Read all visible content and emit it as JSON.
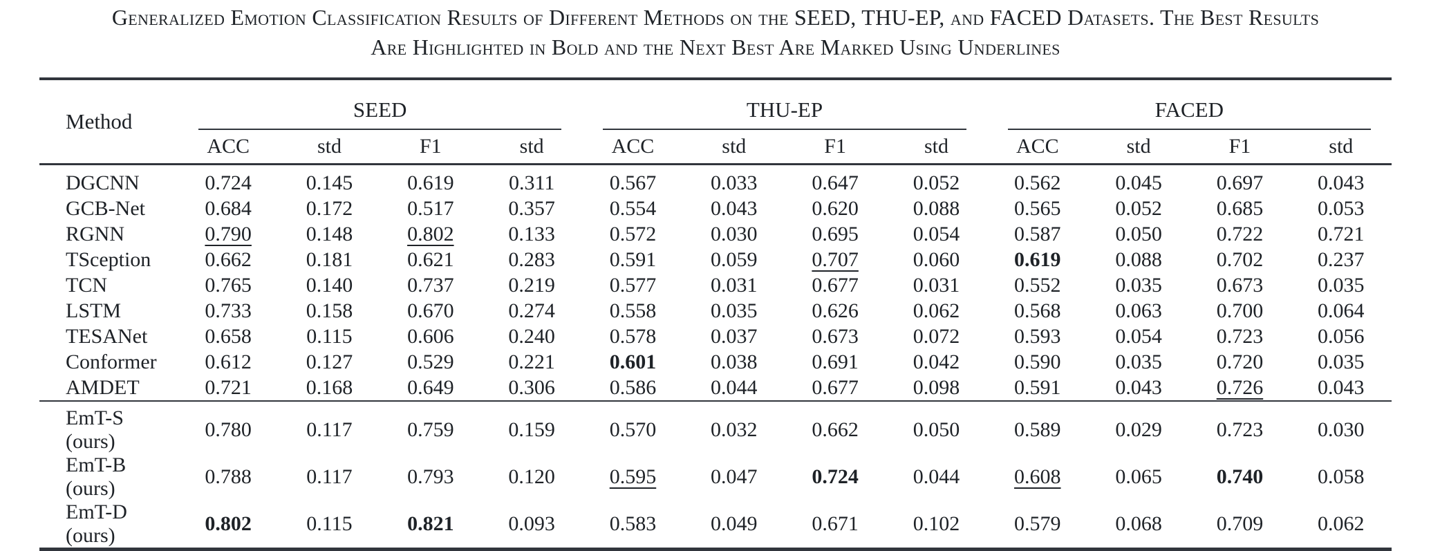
{
  "caption": {
    "line1": "Generalized Emotion Classification Results of Different Methods on the SEED, THU-EP, and FACED Datasets. The Best Results",
    "line2": "Are Highlighted in Bold and the Next Best Are Marked Using Underlines"
  },
  "colors": {
    "text": "#1e2227",
    "rule": "#31353c",
    "background": "#ffffff"
  },
  "table": {
    "method_header": "Method",
    "groups": [
      "SEED",
      "THU-EP",
      "FACED"
    ],
    "subheaders": [
      "ACC",
      "std",
      "F1",
      "std",
      "ACC",
      "std",
      "F1",
      "std",
      "ACC",
      "std",
      "F1",
      "std"
    ],
    "emphasis_legend": {
      "bold": "best result",
      "underline": "next best result"
    },
    "rows": [
      {
        "method": "DGCNN",
        "cells": [
          {
            "v": "0.724",
            "s": ""
          },
          {
            "v": "0.145",
            "s": ""
          },
          {
            "v": "0.619",
            "s": ""
          },
          {
            "v": "0.311",
            "s": ""
          },
          {
            "v": "0.567",
            "s": ""
          },
          {
            "v": "0.033",
            "s": ""
          },
          {
            "v": "0.647",
            "s": ""
          },
          {
            "v": "0.052",
            "s": ""
          },
          {
            "v": "0.562",
            "s": ""
          },
          {
            "v": "0.045",
            "s": ""
          },
          {
            "v": "0.697",
            "s": ""
          },
          {
            "v": "0.043",
            "s": ""
          }
        ]
      },
      {
        "method": "GCB-Net",
        "cells": [
          {
            "v": "0.684",
            "s": ""
          },
          {
            "v": "0.172",
            "s": ""
          },
          {
            "v": "0.517",
            "s": ""
          },
          {
            "v": "0.357",
            "s": ""
          },
          {
            "v": "0.554",
            "s": ""
          },
          {
            "v": "0.043",
            "s": ""
          },
          {
            "v": "0.620",
            "s": ""
          },
          {
            "v": "0.088",
            "s": ""
          },
          {
            "v": "0.565",
            "s": ""
          },
          {
            "v": "0.052",
            "s": ""
          },
          {
            "v": "0.685",
            "s": ""
          },
          {
            "v": "0.053",
            "s": ""
          }
        ]
      },
      {
        "method": "RGNN",
        "cells": [
          {
            "v": "0.790",
            "s": "underline"
          },
          {
            "v": "0.148",
            "s": ""
          },
          {
            "v": "0.802",
            "s": "underline"
          },
          {
            "v": "0.133",
            "s": ""
          },
          {
            "v": "0.572",
            "s": ""
          },
          {
            "v": "0.030",
            "s": ""
          },
          {
            "v": "0.695",
            "s": ""
          },
          {
            "v": "0.054",
            "s": ""
          },
          {
            "v": "0.587",
            "s": ""
          },
          {
            "v": "0.050",
            "s": ""
          },
          {
            "v": "0.722",
            "s": ""
          },
          {
            "v": "0.721",
            "s": ""
          }
        ]
      },
      {
        "method": "TSception",
        "cells": [
          {
            "v": "0.662",
            "s": ""
          },
          {
            "v": "0.181",
            "s": ""
          },
          {
            "v": "0.621",
            "s": ""
          },
          {
            "v": "0.283",
            "s": ""
          },
          {
            "v": "0.591",
            "s": ""
          },
          {
            "v": "0.059",
            "s": ""
          },
          {
            "v": "0.707",
            "s": "underline"
          },
          {
            "v": "0.060",
            "s": ""
          },
          {
            "v": "0.619",
            "s": "bold"
          },
          {
            "v": "0.088",
            "s": ""
          },
          {
            "v": "0.702",
            "s": ""
          },
          {
            "v": "0.237",
            "s": ""
          }
        ]
      },
      {
        "method": "TCN",
        "cells": [
          {
            "v": "0.765",
            "s": ""
          },
          {
            "v": "0.140",
            "s": ""
          },
          {
            "v": "0.737",
            "s": ""
          },
          {
            "v": "0.219",
            "s": ""
          },
          {
            "v": "0.577",
            "s": ""
          },
          {
            "v": "0.031",
            "s": ""
          },
          {
            "v": "0.677",
            "s": ""
          },
          {
            "v": "0.031",
            "s": ""
          },
          {
            "v": "0.552",
            "s": ""
          },
          {
            "v": "0.035",
            "s": ""
          },
          {
            "v": "0.673",
            "s": ""
          },
          {
            "v": "0.035",
            "s": ""
          }
        ]
      },
      {
        "method": "LSTM",
        "cells": [
          {
            "v": "0.733",
            "s": ""
          },
          {
            "v": "0.158",
            "s": ""
          },
          {
            "v": "0.670",
            "s": ""
          },
          {
            "v": "0.274",
            "s": ""
          },
          {
            "v": "0.558",
            "s": ""
          },
          {
            "v": "0.035",
            "s": ""
          },
          {
            "v": "0.626",
            "s": ""
          },
          {
            "v": "0.062",
            "s": ""
          },
          {
            "v": "0.568",
            "s": ""
          },
          {
            "v": "0.063",
            "s": ""
          },
          {
            "v": "0.700",
            "s": ""
          },
          {
            "v": "0.064",
            "s": ""
          }
        ]
      },
      {
        "method": "TESANet",
        "cells": [
          {
            "v": "0.658",
            "s": ""
          },
          {
            "v": "0.115",
            "s": ""
          },
          {
            "v": "0.606",
            "s": ""
          },
          {
            "v": "0.240",
            "s": ""
          },
          {
            "v": "0.578",
            "s": ""
          },
          {
            "v": "0.037",
            "s": ""
          },
          {
            "v": "0.673",
            "s": ""
          },
          {
            "v": "0.072",
            "s": ""
          },
          {
            "v": "0.593",
            "s": ""
          },
          {
            "v": "0.054",
            "s": ""
          },
          {
            "v": "0.723",
            "s": ""
          },
          {
            "v": "0.056",
            "s": ""
          }
        ]
      },
      {
        "method": "Conformer",
        "cells": [
          {
            "v": "0.612",
            "s": ""
          },
          {
            "v": "0.127",
            "s": ""
          },
          {
            "v": "0.529",
            "s": ""
          },
          {
            "v": "0.221",
            "s": ""
          },
          {
            "v": "0.601",
            "s": "bold"
          },
          {
            "v": "0.038",
            "s": ""
          },
          {
            "v": "0.691",
            "s": ""
          },
          {
            "v": "0.042",
            "s": ""
          },
          {
            "v": "0.590",
            "s": ""
          },
          {
            "v": "0.035",
            "s": ""
          },
          {
            "v": "0.720",
            "s": ""
          },
          {
            "v": "0.035",
            "s": ""
          }
        ]
      },
      {
        "method": "AMDET",
        "cells": [
          {
            "v": "0.721",
            "s": ""
          },
          {
            "v": "0.168",
            "s": ""
          },
          {
            "v": "0.649",
            "s": ""
          },
          {
            "v": "0.306",
            "s": ""
          },
          {
            "v": "0.586",
            "s": ""
          },
          {
            "v": "0.044",
            "s": ""
          },
          {
            "v": "0.677",
            "s": ""
          },
          {
            "v": "0.098",
            "s": ""
          },
          {
            "v": "0.591",
            "s": ""
          },
          {
            "v": "0.043",
            "s": ""
          },
          {
            "v": "0.726",
            "s": "underline"
          },
          {
            "v": "0.043",
            "s": ""
          }
        ]
      },
      {
        "method": "EmT-S (ours)",
        "cells": [
          {
            "v": "0.780",
            "s": ""
          },
          {
            "v": "0.117",
            "s": ""
          },
          {
            "v": "0.759",
            "s": ""
          },
          {
            "v": "0.159",
            "s": ""
          },
          {
            "v": "0.570",
            "s": ""
          },
          {
            "v": "0.032",
            "s": ""
          },
          {
            "v": "0.662",
            "s": ""
          },
          {
            "v": "0.050",
            "s": ""
          },
          {
            "v": "0.589",
            "s": ""
          },
          {
            "v": "0.029",
            "s": ""
          },
          {
            "v": "0.723",
            "s": ""
          },
          {
            "v": "0.030",
            "s": ""
          }
        ]
      },
      {
        "method": "EmT-B (ours)",
        "cells": [
          {
            "v": "0.788",
            "s": ""
          },
          {
            "v": "0.117",
            "s": ""
          },
          {
            "v": "0.793",
            "s": ""
          },
          {
            "v": "0.120",
            "s": ""
          },
          {
            "v": "0.595",
            "s": "underline"
          },
          {
            "v": "0.047",
            "s": ""
          },
          {
            "v": "0.724",
            "s": "bold"
          },
          {
            "v": "0.044",
            "s": ""
          },
          {
            "v": "0.608",
            "s": "underline"
          },
          {
            "v": "0.065",
            "s": ""
          },
          {
            "v": "0.740",
            "s": "bold"
          },
          {
            "v": "0.058",
            "s": ""
          }
        ]
      },
      {
        "method": "EmT-D (ours)",
        "cells": [
          {
            "v": "0.802",
            "s": "bold"
          },
          {
            "v": "0.115",
            "s": ""
          },
          {
            "v": "0.821",
            "s": "bold"
          },
          {
            "v": "0.093",
            "s": ""
          },
          {
            "v": "0.583",
            "s": ""
          },
          {
            "v": "0.049",
            "s": ""
          },
          {
            "v": "0.671",
            "s": ""
          },
          {
            "v": "0.102",
            "s": ""
          },
          {
            "v": "0.579",
            "s": ""
          },
          {
            "v": "0.068",
            "s": ""
          },
          {
            "v": "0.709",
            "s": ""
          },
          {
            "v": "0.062",
            "s": ""
          }
        ]
      }
    ]
  }
}
